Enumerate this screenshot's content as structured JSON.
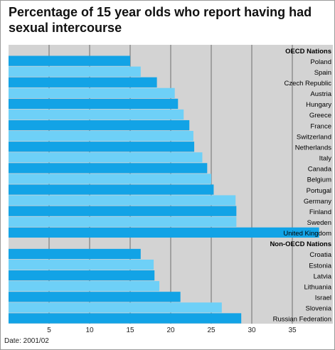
{
  "chart_data": {
    "type": "bar",
    "orientation": "horizontal",
    "title": "Percentage of 15 year olds who report having had sexual intercourse",
    "xlim": [
      0,
      40
    ],
    "xticks": [
      5,
      10,
      15,
      20,
      25,
      30,
      35
    ],
    "groups": [
      {
        "name": "OECD Nations",
        "categories": [
          "Poland",
          "Spain",
          "Czech Republic",
          "Austria",
          "Hungary",
          "Greece",
          "France",
          "Switzerland",
          "Netherlands",
          "Italy",
          "Canada",
          "Belgium",
          "Portugal",
          "Germany",
          "Finland",
          "Sweden",
          "United Kingdom"
        ],
        "values": [
          15.0,
          16.3,
          18.3,
          20.5,
          20.9,
          21.6,
          22.3,
          22.8,
          22.9,
          23.9,
          24.5,
          25.0,
          25.3,
          28.0,
          28.1,
          28.1,
          38.3
        ]
      },
      {
        "name": "Non-OECD Nations",
        "categories": [
          "Croatia",
          "Estonia",
          "Latvia",
          "Lithuania",
          "Israel",
          "Slovenia",
          "Russian Federation"
        ],
        "values": [
          16.3,
          17.9,
          18.0,
          18.6,
          21.2,
          26.3,
          28.7
        ]
      }
    ],
    "colors": {
      "dark": "#12a3e6",
      "light": "#6ed0f7",
      "background": "#d3d3d3",
      "grid": "#555555"
    },
    "grid": true,
    "footnote": "Date: 2001/02"
  }
}
